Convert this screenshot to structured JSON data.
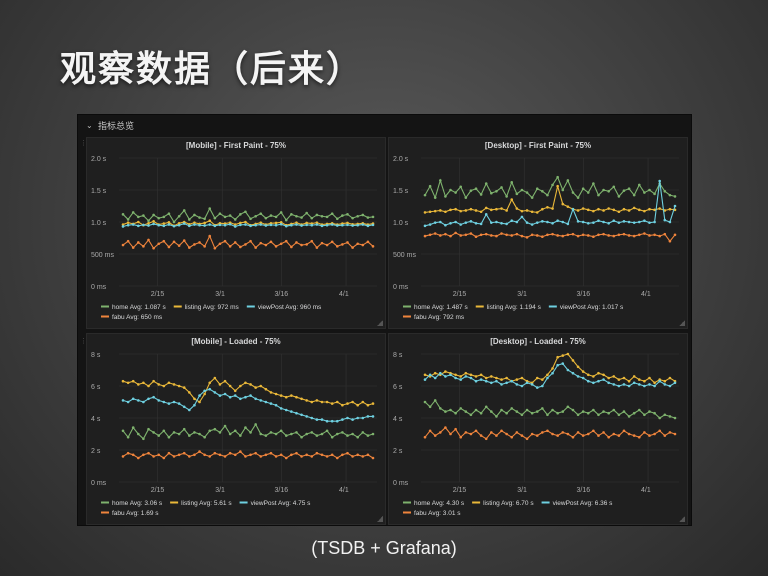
{
  "slide": {
    "title": "观察数据（后来）",
    "caption": "(TSDB + Grafana)"
  },
  "dashboard": {
    "row_title": "指标总览",
    "theme": {
      "bg": "#141414",
      "panel_bg": "#1f1f1f",
      "grid": "#333333",
      "text": "#d8d9da"
    }
  },
  "chart_data": [
    {
      "type": "line",
      "title": "[Mobile] - First Paint - 75%",
      "y_ticks": [
        "2.0 s",
        "1.5 s",
        "1.0 s",
        "500 ms",
        "0 ms"
      ],
      "y_tick_values": [
        2000,
        1500,
        1000,
        500,
        0
      ],
      "ylim": [
        0,
        2000
      ],
      "x_ticks": [
        "2/15",
        "3/1",
        "3/16",
        "4/1"
      ],
      "series": [
        {
          "name": "home",
          "color": "#7eb26d",
          "avg": "1.087 s",
          "values": [
            1120,
            1040,
            1150,
            1080,
            1100,
            1020,
            1110,
            1060,
            1080,
            1130,
            1000,
            1090,
            1180,
            1040,
            1110,
            1070,
            1050,
            1210,
            1060,
            1130,
            1080,
            1100,
            1040,
            1120,
            1160,
            1050,
            1090,
            1130,
            1060,
            1100,
            1080,
            1150,
            1030,
            1120,
            1090,
            1070,
            1140,
            1060,
            1110,
            1090,
            1080,
            1130,
            1050,
            1100,
            1120,
            1060,
            1090,
            1110,
            1070,
            1080
          ]
        },
        {
          "name": "listing",
          "color": "#eab839",
          "avg": "972 ms",
          "values": [
            960,
            990,
            970,
            1000,
            950,
            980,
            1010,
            960,
            975,
            995,
            940,
            980,
            1000,
            965,
            990,
            970,
            985,
            1020,
            950,
            980,
            975,
            990,
            960,
            985,
            1000,
            950,
            970,
            990,
            960,
            980,
            985,
            995,
            950,
            970,
            990,
            960,
            985,
            975,
            990,
            960,
            970,
            980,
            960,
            975,
            985,
            965,
            970,
            980,
            960,
            975
          ]
        },
        {
          "name": "viewPost",
          "color": "#6ed0e0",
          "avg": "960 ms",
          "values": [
            930,
            950,
            960,
            940,
            955,
            945,
            970,
            950,
            940,
            960,
            935,
            950,
            975,
            940,
            960,
            950,
            945,
            960,
            940,
            955,
            950,
            965,
            930,
            955,
            960,
            940,
            950,
            960,
            945,
            955,
            950,
            965,
            935,
            950,
            960,
            945,
            955,
            950,
            960,
            940,
            950,
            960,
            945,
            950,
            955,
            945,
            950,
            960,
            940,
            955
          ]
        },
        {
          "name": "fabu",
          "color": "#ef843c",
          "avg": "650 ms",
          "values": [
            640,
            700,
            600,
            680,
            620,
            720,
            590,
            660,
            700,
            610,
            690,
            630,
            710,
            600,
            650,
            680,
            620,
            780,
            590,
            660,
            700,
            620,
            680,
            610,
            650,
            700,
            600,
            670,
            640,
            690,
            620,
            660,
            700,
            610,
            680,
            640,
            650,
            700,
            600,
            670,
            640,
            690,
            620,
            650,
            680,
            600,
            660,
            640,
            690,
            620
          ]
        }
      ]
    },
    {
      "type": "line",
      "title": "[Desktop] - First Paint - 75%",
      "y_ticks": [
        "2.0 s",
        "1.5 s",
        "1.0 s",
        "500 ms",
        "0 ms"
      ],
      "y_tick_values": [
        2000,
        1500,
        1000,
        500,
        0
      ],
      "ylim": [
        0,
        2000
      ],
      "x_ticks": [
        "2/15",
        "3/1",
        "3/16",
        "4/1"
      ],
      "series": [
        {
          "name": "home",
          "color": "#7eb26d",
          "avg": "1.487 s",
          "values": [
            1420,
            1560,
            1380,
            1650,
            1400,
            1500,
            1460,
            1550,
            1380,
            1490,
            1520,
            1430,
            1600,
            1450,
            1480,
            1540,
            1400,
            1620,
            1440,
            1500,
            1460,
            1380,
            1520,
            1480,
            1420,
            1580,
            1700,
            1500,
            1650,
            1460,
            1380,
            1520,
            1460,
            1600,
            1420,
            1500,
            1480,
            1550,
            1400,
            1490,
            1520,
            1420,
            1580,
            1460,
            1500,
            1440,
            1600,
            1480,
            1420,
            1400
          ]
        },
        {
          "name": "listing",
          "color": "#eab839",
          "avg": "1.194 s",
          "values": [
            1150,
            1160,
            1170,
            1180,
            1160,
            1190,
            1200,
            1170,
            1180,
            1200,
            1180,
            1160,
            1220,
            1190,
            1200,
            1210,
            1180,
            1350,
            1210,
            1170,
            1180,
            1160,
            1150,
            1200,
            1230,
            1210,
            1560,
            1280,
            1240,
            1200,
            1180,
            1210,
            1190,
            1170,
            1200,
            1180,
            1210,
            1190,
            1160,
            1200,
            1180,
            1220,
            1190,
            1170,
            1200,
            1190,
            1210,
            1180,
            1200,
            1190
          ]
        },
        {
          "name": "viewPost",
          "color": "#6ed0e0",
          "avg": "1.017 s",
          "values": [
            940,
            960,
            990,
            1000,
            950,
            980,
            1000,
            960,
            990,
            1010,
            980,
            970,
            1120,
            990,
            1000,
            980,
            970,
            1020,
            1000,
            1080,
            990,
            960,
            990,
            1010,
            1000,
            980,
            1020,
            1000,
            970,
            1200,
            1010,
            1000,
            980,
            990,
            1020,
            1000,
            980,
            1020,
            990,
            1010,
            1000,
            990,
            1000,
            1020,
            990,
            1000,
            1640,
            1030,
            1000,
            1250
          ]
        },
        {
          "name": "fabu",
          "color": "#ef843c",
          "avg": "792 ms",
          "values": [
            780,
            800,
            820,
            790,
            810,
            780,
            830,
            790,
            800,
            820,
            770,
            800,
            810,
            790,
            780,
            820,
            800,
            790,
            810,
            780,
            760,
            800,
            790,
            770,
            800,
            810,
            790,
            780,
            800,
            810,
            780,
            800,
            790,
            770,
            800,
            810,
            790,
            780,
            800,
            810,
            790,
            780,
            800,
            820,
            790,
            800,
            780,
            810,
            700,
            800
          ]
        }
      ]
    },
    {
      "type": "line",
      "title": "[Mobile] - Loaded - 75%",
      "y_ticks": [
        "8 s",
        "6 s",
        "4 s",
        "2 s",
        "0 ms"
      ],
      "y_tick_values": [
        8000,
        6000,
        4000,
        2000,
        0
      ],
      "ylim": [
        0,
        8000
      ],
      "x_ticks": [
        "2/15",
        "3/1",
        "3/16",
        "4/1"
      ],
      "series": [
        {
          "name": "home",
          "color": "#7eb26d",
          "avg": "3.06 s",
          "values": [
            3200,
            2800,
            3400,
            3000,
            2700,
            3300,
            3100,
            2900,
            3200,
            2800,
            3100,
            3000,
            3300,
            2900,
            3100,
            3000,
            2800,
            3200,
            3300,
            3100,
            3500,
            3000,
            3200,
            2900,
            3400,
            3100,
            3600,
            3000,
            2900,
            3100,
            3000,
            3200,
            2900,
            3000,
            3100,
            2800,
            3000,
            3100,
            2900,
            3000,
            3200,
            2800,
            3000,
            3100,
            2900,
            3000,
            2800,
            3100,
            2900,
            3000
          ]
        },
        {
          "name": "listing",
          "color": "#eab839",
          "avg": "5.61 s",
          "values": [
            6300,
            6200,
            6300,
            6100,
            6200,
            6000,
            6300,
            6100,
            6000,
            6200,
            6100,
            6000,
            5900,
            5600,
            5200,
            5000,
            5500,
            6200,
            6500,
            6100,
            6300,
            6000,
            5700,
            6000,
            6200,
            6100,
            5900,
            6000,
            5800,
            5600,
            5500,
            5400,
            5300,
            5400,
            5300,
            5200,
            5100,
            5000,
            5100,
            5000,
            5000,
            4900,
            5000,
            4800,
            4900,
            5000,
            4800,
            5000,
            4800,
            4900
          ]
        },
        {
          "name": "viewPost",
          "color": "#6ed0e0",
          "avg": "4.75 s",
          "values": [
            5100,
            5000,
            5200,
            5100,
            5000,
            5200,
            5300,
            5100,
            5000,
            4900,
            5000,
            4900,
            4700,
            4500,
            4800,
            5400,
            5700,
            5800,
            5600,
            5400,
            5500,
            5300,
            5400,
            5200,
            5300,
            5400,
            5200,
            5100,
            5000,
            4900,
            4800,
            4600,
            4500,
            4400,
            4300,
            4200,
            4100,
            4000,
            3900,
            3900,
            3800,
            3800,
            3800,
            3900,
            4000,
            3900,
            4000,
            4000,
            4100,
            4100
          ]
        },
        {
          "name": "fabu",
          "color": "#ef843c",
          "avg": "1.69 s",
          "values": [
            1600,
            1800,
            1700,
            1500,
            1700,
            1800,
            1600,
            1700,
            1500,
            1800,
            1600,
            1700,
            1800,
            1600,
            1700,
            1900,
            1700,
            1600,
            1800,
            1700,
            1600,
            1800,
            1700,
            1900,
            1600,
            1700,
            1800,
            1600,
            1700,
            1800,
            1600,
            1700,
            1500,
            1700,
            1800,
            1600,
            1700,
            1600,
            1800,
            1700,
            1600,
            1700,
            1500,
            1700,
            1800,
            1600,
            1700,
            1600,
            1700,
            1500
          ]
        }
      ]
    },
    {
      "type": "line",
      "title": "[Desktop] - Loaded - 75%",
      "y_ticks": [
        "8 s",
        "6 s",
        "4 s",
        "2 s",
        "0 ms"
      ],
      "y_tick_values": [
        8000,
        6000,
        4000,
        2000,
        0
      ],
      "ylim": [
        0,
        8000
      ],
      "x_ticks": [
        "2/15",
        "3/1",
        "3/16",
        "4/1"
      ],
      "series": [
        {
          "name": "home",
          "color": "#7eb26d",
          "avg": "4.30 s",
          "values": [
            5000,
            4700,
            5100,
            4600,
            4400,
            4500,
            4300,
            4600,
            4400,
            4200,
            4500,
            4300,
            4700,
            4400,
            4100,
            4500,
            4300,
            4600,
            4400,
            4200,
            4500,
            4300,
            4400,
            4600,
            4200,
            4500,
            4300,
            4400,
            4700,
            4500,
            4200,
            4400,
            4300,
            4500,
            4200,
            4400,
            4300,
            4500,
            4200,
            4400,
            4100,
            4300,
            4500,
            4200,
            4400,
            4300,
            4000,
            4200,
            4100,
            4000
          ]
        },
        {
          "name": "listing",
          "color": "#eab839",
          "avg": "6.70 s",
          "values": [
            6700,
            6600,
            6800,
            6700,
            6900,
            6800,
            6700,
            6600,
            6800,
            6700,
            6600,
            6700,
            6500,
            6600,
            6500,
            6400,
            6500,
            6300,
            6400,
            6500,
            6300,
            6200,
            6500,
            6400,
            6700,
            7100,
            7800,
            7900,
            8000,
            7600,
            7200,
            6900,
            6700,
            6600,
            6800,
            6700,
            6500,
            6600,
            6400,
            6500,
            6300,
            6600,
            6400,
            6300,
            6500,
            6200,
            6400,
            6300,
            6500,
            6300
          ]
        },
        {
          "name": "viewPost",
          "color": "#6ed0e0",
          "avg": "6.36 s",
          "values": [
            6400,
            6700,
            6500,
            6800,
            6600,
            6700,
            6500,
            6400,
            6600,
            6500,
            6300,
            6400,
            6300,
            6200,
            6300,
            6100,
            6200,
            6300,
            6100,
            6000,
            6200,
            6100,
            5900,
            6000,
            6500,
            6800,
            7300,
            7400,
            7000,
            6800,
            6600,
            6500,
            6300,
            6200,
            6300,
            6400,
            6200,
            6100,
            6000,
            6100,
            6000,
            6200,
            6100,
            6000,
            6100,
            6000,
            6300,
            6100,
            6000,
            6200
          ]
        },
        {
          "name": "fabu",
          "color": "#ef843c",
          "avg": "3.01 s",
          "values": [
            2800,
            3200,
            2900,
            3100,
            3400,
            3000,
            3300,
            2800,
            3100,
            3000,
            3200,
            2900,
            2700,
            3100,
            2900,
            3200,
            3000,
            2800,
            3100,
            2900,
            2700,
            3000,
            2900,
            3100,
            3200,
            3000,
            2900,
            3100,
            3000,
            2800,
            3100,
            2900,
            3000,
            3200,
            2900,
            3100,
            2800,
            3000,
            2900,
            3200,
            3000,
            2900,
            2800,
            3100,
            2900,
            3000,
            3200,
            2900,
            3100,
            3000
          ]
        }
      ]
    }
  ]
}
